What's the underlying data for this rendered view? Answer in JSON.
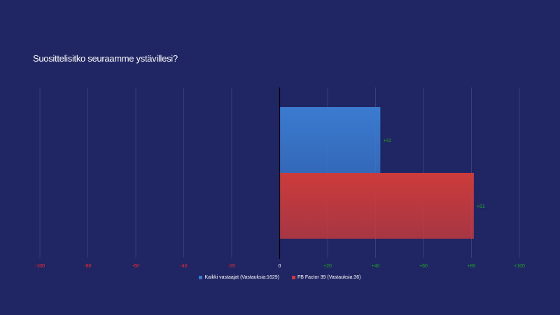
{
  "chart_data": {
    "type": "bar",
    "orientation": "horizontal",
    "title": "Suosittelisitko seuraamme ystävillesi?",
    "xlim": [
      -100,
      100
    ],
    "x_ticks": [
      -100,
      -80,
      -60,
      -40,
      -20,
      0,
      20,
      40,
      60,
      80,
      100
    ],
    "x_tick_labels": [
      "-100",
      "-80",
      "-60",
      "-40",
      "-20",
      "0",
      "+20",
      "+40",
      "+60",
      "+80",
      "+100"
    ],
    "grid": true,
    "legend_position": "bottom",
    "series": [
      {
        "name": "Kaikki vastaajat (Vastauksia:1629)",
        "value": 42,
        "label": "+42",
        "color": "#3a7bd0"
      },
      {
        "name": "FB Factor 39 (Vastauksia:36)",
        "value": 81,
        "label": "+81",
        "color": "#cc3b3b"
      }
    ],
    "colors": {
      "negative_tick": "#ff2a2a",
      "positive_tick": "#1fa51f",
      "zero_tick": "#ffffff",
      "data_label": "#1fa51f",
      "grid": "#3a3f78",
      "axis": "#000000"
    }
  }
}
